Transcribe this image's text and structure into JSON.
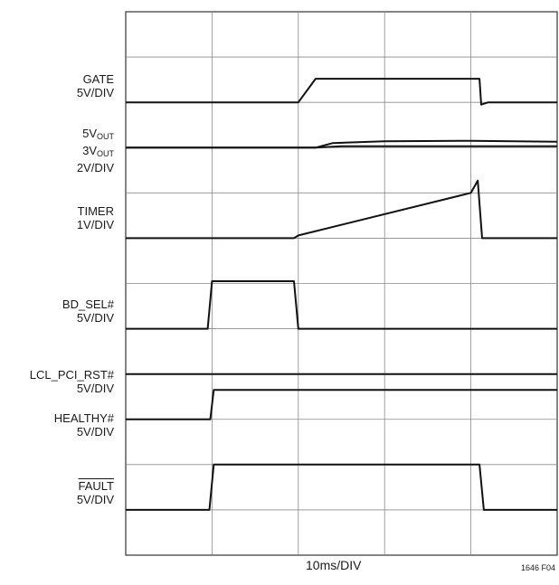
{
  "chart_data": {
    "type": "line",
    "title": "",
    "xlabel": "10ms/DIV",
    "figure_id": "1646 F04",
    "x_unit": "ms",
    "xlim": [
      0,
      50
    ],
    "grid": true,
    "grid_divisions": {
      "x": 5,
      "y": 12
    },
    "traces": [
      {
        "name": "GATE",
        "scale": "5V/DIV",
        "points": [
          [
            0,
            0
          ],
          [
            20,
            0
          ],
          [
            22,
            0.52
          ],
          [
            41,
            0.52
          ],
          [
            41.2,
            -0.05
          ],
          [
            42,
            0
          ],
          [
            50,
            0
          ]
        ]
      },
      {
        "name": "5V_OUT",
        "scale": "2V/DIV",
        "points": [
          [
            0,
            0
          ],
          [
            22,
            0
          ],
          [
            24,
            0.1
          ],
          [
            30,
            0.14
          ],
          [
            40,
            0.15
          ],
          [
            50,
            0.13
          ]
        ]
      },
      {
        "name": "3V_OUT",
        "scale": "2V/DIV",
        "points": [
          [
            0,
            0
          ],
          [
            22,
            0
          ],
          [
            25,
            0.03
          ],
          [
            50,
            0.03
          ]
        ]
      },
      {
        "name": "TIMER",
        "scale": "1V/DIV",
        "points": [
          [
            0,
            0
          ],
          [
            19.5,
            0
          ],
          [
            20,
            0.06
          ],
          [
            40,
            1.0
          ],
          [
            40.8,
            1.27
          ],
          [
            41.3,
            0
          ],
          [
            50,
            0
          ]
        ]
      },
      {
        "name": "BD_SEL#",
        "scale": "5V/DIV",
        "points": [
          [
            0,
            0
          ],
          [
            9.5,
            0
          ],
          [
            10,
            1.05
          ],
          [
            19.5,
            1.05
          ],
          [
            20,
            0
          ],
          [
            50,
            0
          ]
        ]
      },
      {
        "name": "LCL_PCI_RST#",
        "scale": "5V/DIV",
        "points": [
          [
            0,
            0
          ],
          [
            50,
            0
          ]
        ]
      },
      {
        "name": "HEALTHY#",
        "scale": "5V/DIV",
        "points": [
          [
            0,
            0
          ],
          [
            9.8,
            0
          ],
          [
            10.2,
            0.65
          ],
          [
            50,
            0.65
          ]
        ]
      },
      {
        "name": "FAULT",
        "scale": "5V/DIV",
        "points": [
          [
            0,
            0
          ],
          [
            9.7,
            0
          ],
          [
            10.2,
            1.0
          ],
          [
            41,
            1.0
          ],
          [
            41.5,
            0
          ],
          [
            50,
            0
          ]
        ]
      }
    ]
  },
  "labels": {
    "gate": "GATE",
    "gate_scale": "5V/DIV",
    "v5": "5V",
    "v3": "3V",
    "out": "OUT",
    "vout_scale": "2V/DIV",
    "timer": "TIMER",
    "timer_scale": "1V/DIV",
    "bdsel": "BD_SEL#",
    "bdsel_scale": "5V/DIV",
    "rst": "LCL_PCI_RST#",
    "rst_scale": "5V/DIV",
    "healthy": "HEALTHY#",
    "healthy_scale": "5V/DIV",
    "fault": "FAULT",
    "fault_scale": "5V/DIV"
  },
  "colors": {
    "trace": "#111111",
    "grid": "#8a8a8a",
    "frame": "#333333"
  }
}
